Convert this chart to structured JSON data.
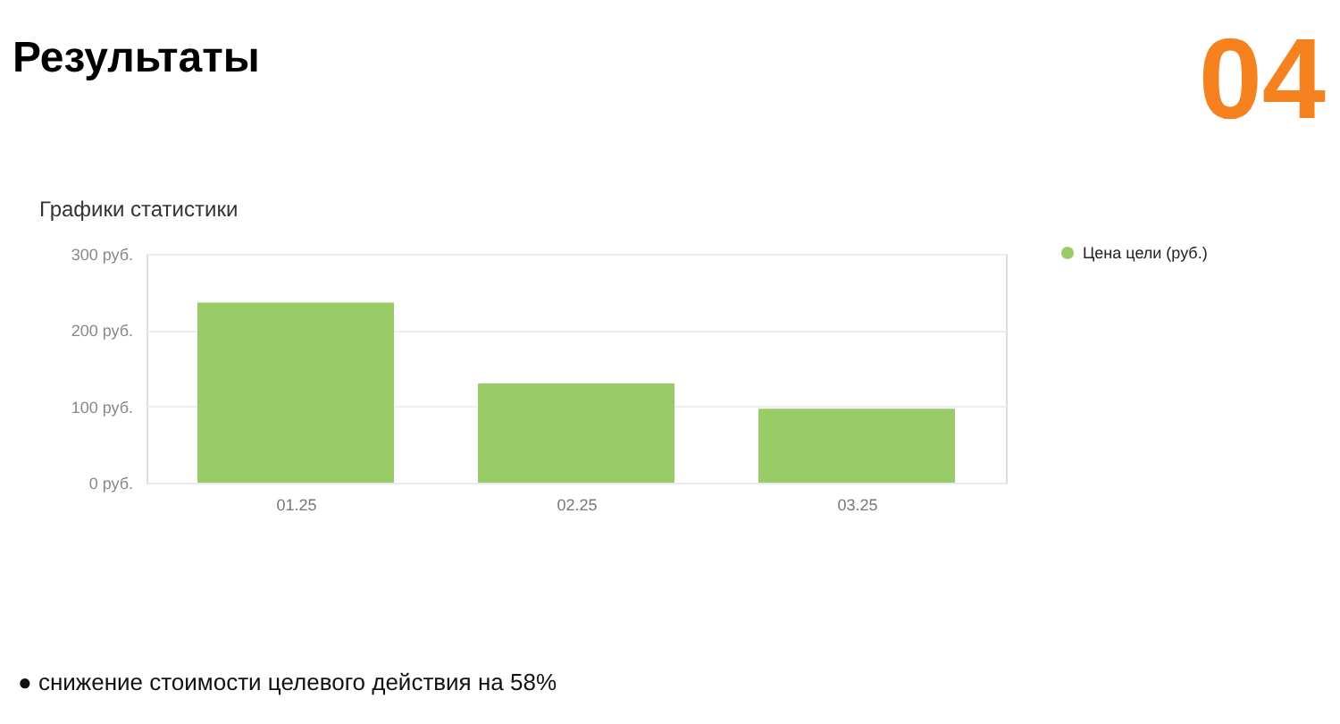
{
  "chart_data": {
    "type": "bar",
    "title": "Результаты",
    "subtitle": "Графики статистики",
    "categories": [
      "01.25",
      "02.25",
      "03.25"
    ],
    "series": [
      {
        "name": "Цена цели (руб.)",
        "color": "#99cc66",
        "values": [
          236,
          130,
          97
        ]
      }
    ],
    "ylim": [
      0,
      300
    ],
    "yticks": [
      {
        "value": 0,
        "label": "0 руб."
      },
      {
        "value": 100,
        "label": "100 руб."
      },
      {
        "value": 200,
        "label": "200 руб."
      },
      {
        "value": 300,
        "label": "300 руб."
      }
    ],
    "grid": "y",
    "legend": "top right",
    "annotations": [
      "04",
      "●  снижение стоимости целевого действия на 58%"
    ]
  }
}
